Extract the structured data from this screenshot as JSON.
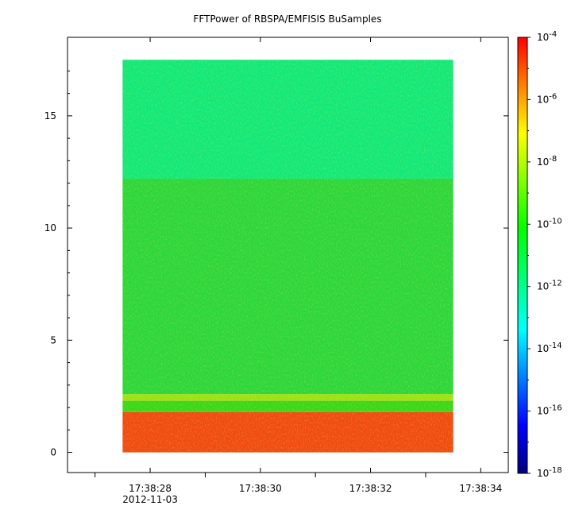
{
  "chart_data": {
    "type": "heatmap",
    "title": "FFTPower of RBSPA/EMFISIS  BuSamples",
    "xlabel": "",
    "ylabel": "",
    "x_ticks": [
      "17:38:28",
      "17:38:30",
      "17:38:32",
      "17:38:34"
    ],
    "x_tick_seconds": [
      28,
      30,
      32,
      34
    ],
    "x_sublabel": "2012-11-03",
    "xlim_seconds": [
      26.5,
      34.5
    ],
    "data_x_range_seconds": [
      27.5,
      33.5
    ],
    "y_ticks": [
      "0",
      "5",
      "10",
      "15"
    ],
    "y_tick_values": [
      0,
      5,
      10,
      15
    ],
    "ylim": [
      -0.9,
      18.5
    ],
    "data_y_range": [
      0,
      17.5
    ],
    "colorbar": {
      "scale": "log",
      "range": [
        1e-18,
        0.0001
      ],
      "tick_exponents": [
        "-4",
        "-6",
        "-8",
        "-10",
        "-12",
        "-14",
        "-16",
        "-18"
      ],
      "tick_base": "10",
      "colormap": "rainbow"
    },
    "spectral_bands": [
      {
        "y_range": [
          0,
          1.8
        ],
        "log_power": -6.0,
        "color": "#f04a12"
      },
      {
        "y_range": [
          1.8,
          2.3
        ],
        "log_power": -10.0,
        "color": "#3ad61a"
      },
      {
        "y_range": [
          2.3,
          2.6
        ],
        "log_power": -9.2,
        "color": "#9ee014"
      },
      {
        "y_range": [
          2.6,
          12.2
        ],
        "log_power": -10.2,
        "color": "#2cd63c"
      },
      {
        "y_range": [
          12.2,
          17.5
        ],
        "log_power": -12.0,
        "color": "#12e87a"
      }
    ],
    "grid": false
  }
}
